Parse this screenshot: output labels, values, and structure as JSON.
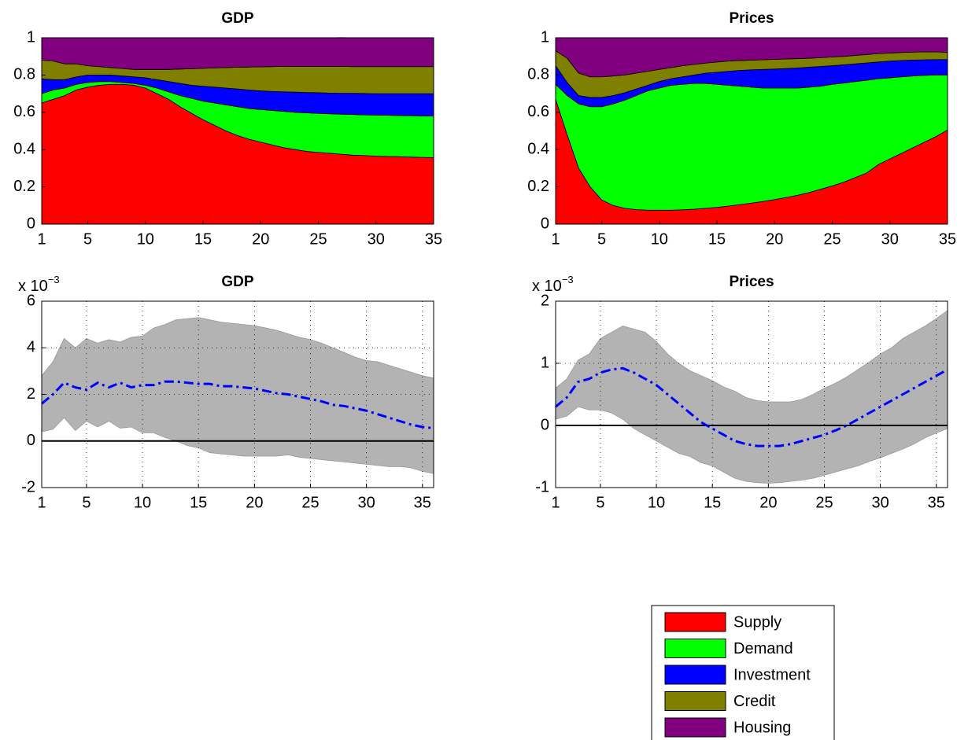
{
  "chart_data": [
    {
      "type": "stacked_area",
      "title": "GDP",
      "x": [
        1,
        2,
        3,
        4,
        5,
        6,
        7,
        8,
        9,
        10,
        11,
        12,
        13,
        14,
        15,
        16,
        17,
        18,
        19,
        20,
        21,
        22,
        23,
        24,
        25,
        26,
        27,
        28,
        29,
        30,
        31,
        32,
        33,
        34,
        35
      ],
      "series": [
        {
          "name": "Supply",
          "color": "#ff0000",
          "values": [
            0.65,
            0.67,
            0.69,
            0.72,
            0.735,
            0.745,
            0.75,
            0.75,
            0.745,
            0.73,
            0.7,
            0.67,
            0.63,
            0.595,
            0.56,
            0.53,
            0.5,
            0.475,
            0.455,
            0.44,
            0.425,
            0.41,
            0.4,
            0.39,
            0.385,
            0.38,
            0.375,
            0.37,
            0.368,
            0.365,
            0.363,
            0.362,
            0.36,
            0.358,
            0.357
          ]
        },
        {
          "name": "Demand",
          "color": "#00ff00",
          "values": [
            0.05,
            0.05,
            0.04,
            0.03,
            0.025,
            0.02,
            0.015,
            0.01,
            0.01,
            0.015,
            0.03,
            0.04,
            0.06,
            0.08,
            0.1,
            0.12,
            0.14,
            0.155,
            0.165,
            0.175,
            0.185,
            0.195,
            0.2,
            0.207,
            0.209,
            0.212,
            0.215,
            0.218,
            0.218,
            0.22,
            0.221,
            0.221,
            0.222,
            0.223,
            0.223
          ]
        },
        {
          "name": "Investment",
          "color": "#0000ff",
          "values": [
            0.08,
            0.055,
            0.045,
            0.04,
            0.04,
            0.035,
            0.035,
            0.035,
            0.035,
            0.04,
            0.045,
            0.055,
            0.065,
            0.07,
            0.08,
            0.085,
            0.09,
            0.095,
            0.1,
            0.1,
            0.102,
            0.105,
            0.108,
            0.109,
            0.111,
            0.111,
            0.112,
            0.114,
            0.115,
            0.115,
            0.116,
            0.117,
            0.118,
            0.119,
            0.12
          ]
        },
        {
          "name": "Credit",
          "color": "#808000",
          "values": [
            0.1,
            0.1,
            0.085,
            0.07,
            0.05,
            0.045,
            0.04,
            0.04,
            0.04,
            0.045,
            0.055,
            0.065,
            0.077,
            0.089,
            0.096,
            0.103,
            0.11,
            0.117,
            0.123,
            0.129,
            0.133,
            0.136,
            0.138,
            0.14,
            0.141,
            0.143,
            0.144,
            0.143,
            0.144,
            0.145,
            0.145,
            0.145,
            0.145,
            0.145,
            0.145
          ]
        },
        {
          "name": "Housing",
          "color": "#800080",
          "values": [
            0.12,
            0.125,
            0.14,
            0.14,
            0.15,
            0.155,
            0.16,
            0.165,
            0.17,
            0.17,
            0.17,
            0.17,
            0.168,
            0.166,
            0.164,
            0.162,
            0.16,
            0.158,
            0.157,
            0.156,
            0.155,
            0.154,
            0.154,
            0.154,
            0.154,
            0.154,
            0.155,
            0.155,
            0.155,
            0.155,
            0.155,
            0.155,
            0.155,
            0.155,
            0.155
          ]
        }
      ],
      "xlim": [
        1,
        35
      ],
      "xticks": [
        1,
        5,
        10,
        15,
        20,
        25,
        30,
        35
      ],
      "ylim": [
        0,
        1
      ],
      "yticks": [
        0,
        0.2,
        0.4,
        0.6,
        0.8,
        1
      ],
      "grid": false,
      "legend": true
    },
    {
      "type": "stacked_area",
      "title": "Prices",
      "x": [
        1,
        2,
        3,
        4,
        5,
        6,
        7,
        8,
        9,
        10,
        11,
        12,
        13,
        14,
        15,
        16,
        17,
        18,
        19,
        20,
        21,
        22,
        23,
        24,
        25,
        26,
        27,
        28,
        29,
        30,
        31,
        32,
        33,
        34,
        35
      ],
      "series": [
        {
          "color": "#ff0000",
          "values": [
            0.67,
            0.48,
            0.3,
            0.2,
            0.13,
            0.1,
            0.085,
            0.078,
            0.075,
            0.075,
            0.075,
            0.077,
            0.08,
            0.085,
            0.09,
            0.097,
            0.105,
            0.113,
            0.122,
            0.132,
            0.143,
            0.155,
            0.17,
            0.187,
            0.205,
            0.225,
            0.25,
            0.275,
            0.32,
            0.35,
            0.38,
            0.41,
            0.44,
            0.47,
            0.505
          ]
        },
        {
          "color": "#00ff00",
          "values": [
            0.08,
            0.21,
            0.345,
            0.43,
            0.5,
            0.545,
            0.58,
            0.612,
            0.64,
            0.655,
            0.67,
            0.673,
            0.675,
            0.67,
            0.66,
            0.648,
            0.635,
            0.622,
            0.608,
            0.598,
            0.587,
            0.575,
            0.565,
            0.553,
            0.545,
            0.532,
            0.515,
            0.497,
            0.46,
            0.435,
            0.41,
            0.385,
            0.358,
            0.33,
            0.295
          ]
        },
        {
          "color": "#0000ff",
          "values": [
            0.1,
            0.07,
            0.045,
            0.05,
            0.05,
            0.045,
            0.04,
            0.035,
            0.03,
            0.035,
            0.035,
            0.04,
            0.045,
            0.055,
            0.065,
            0.075,
            0.085,
            0.093,
            0.1,
            0.102,
            0.105,
            0.108,
            0.107,
            0.106,
            0.1,
            0.098,
            0.095,
            0.093,
            0.09,
            0.09,
            0.088,
            0.085,
            0.084,
            0.083,
            0.083
          ]
        },
        {
          "color": "#808000",
          "values": [
            0.08,
            0.13,
            0.12,
            0.11,
            0.11,
            0.105,
            0.095,
            0.085,
            0.075,
            0.065,
            0.06,
            0.06,
            0.057,
            0.054,
            0.055,
            0.055,
            0.053,
            0.052,
            0.052,
            0.052,
            0.051,
            0.05,
            0.048,
            0.047,
            0.047,
            0.045,
            0.045,
            0.045,
            0.045,
            0.043,
            0.043,
            0.043,
            0.042,
            0.041,
            0.039
          ]
        },
        {
          "color": "#800080",
          "values": [
            0.07,
            0.11,
            0.19,
            0.21,
            0.21,
            0.205,
            0.2,
            0.19,
            0.18,
            0.17,
            0.16,
            0.15,
            0.143,
            0.136,
            0.13,
            0.125,
            0.122,
            0.12,
            0.118,
            0.116,
            0.114,
            0.112,
            0.11,
            0.107,
            0.103,
            0.1,
            0.095,
            0.09,
            0.085,
            0.082,
            0.079,
            0.077,
            0.076,
            0.076,
            0.078
          ]
        }
      ],
      "xlim": [
        1,
        35
      ],
      "xticks": [
        1,
        5,
        10,
        15,
        20,
        25,
        30,
        35
      ],
      "ylim": [
        0,
        1
      ],
      "yticks": [
        0,
        0.2,
        0.4,
        0.6,
        0.8,
        1
      ],
      "grid": false
    },
    {
      "type": "band_line",
      "title": "GDP",
      "y_multiplier": {
        "base": "x 10",
        "exponent": "−3"
      },
      "x": [
        1,
        2,
        3,
        4,
        5,
        6,
        7,
        8,
        9,
        10,
        11,
        12,
        13,
        14,
        15,
        16,
        17,
        18,
        19,
        20,
        21,
        22,
        23,
        24,
        25,
        26,
        27,
        28,
        29,
        30,
        31,
        32,
        33,
        34,
        35,
        36
      ],
      "band": {
        "color": "#b3b3b3",
        "lower": [
          0.4,
          0.5,
          1.0,
          0.45,
          0.85,
          0.6,
          0.85,
          0.55,
          0.6,
          0.35,
          0.35,
          0.15,
          0.0,
          -0.2,
          -0.3,
          -0.5,
          -0.55,
          -0.6,
          -0.65,
          -0.65,
          -0.65,
          -0.65,
          -0.6,
          -0.7,
          -0.75,
          -0.8,
          -0.85,
          -0.9,
          -0.95,
          -1.0,
          -1.05,
          -1.1,
          -1.1,
          -1.15,
          -1.3,
          -1.4
        ],
        "upper": [
          2.8,
          3.4,
          4.4,
          4.0,
          4.4,
          4.2,
          4.35,
          4.25,
          4.45,
          4.5,
          4.85,
          5.0,
          5.2,
          5.25,
          5.3,
          5.2,
          5.1,
          5.05,
          5.0,
          4.95,
          4.85,
          4.75,
          4.6,
          4.45,
          4.35,
          4.2,
          4.0,
          3.8,
          3.6,
          3.45,
          3.4,
          3.25,
          3.1,
          2.95,
          2.8,
          2.7
        ]
      },
      "line": {
        "color": "#0000ff",
        "values": [
          1.6,
          2.0,
          2.5,
          2.3,
          2.2,
          2.5,
          2.3,
          2.5,
          2.3,
          2.4,
          2.4,
          2.55,
          2.55,
          2.5,
          2.45,
          2.45,
          2.35,
          2.35,
          2.3,
          2.25,
          2.15,
          2.05,
          2.0,
          1.9,
          1.8,
          1.7,
          1.55,
          1.5,
          1.4,
          1.3,
          1.15,
          1.0,
          0.85,
          0.7,
          0.6,
          0.55
        ]
      },
      "reference_line": 0,
      "xlim": [
        1,
        36
      ],
      "xticks": [
        1,
        5,
        10,
        15,
        20,
        25,
        30,
        35
      ],
      "ylim": [
        -2,
        6
      ],
      "yticks": [
        -2,
        0,
        2,
        4,
        6
      ],
      "grid": true
    },
    {
      "type": "band_line",
      "title": "Prices",
      "y_multiplier": {
        "base": "x 10",
        "exponent": "−3"
      },
      "x": [
        1,
        2,
        3,
        4,
        5,
        6,
        7,
        8,
        9,
        10,
        11,
        12,
        13,
        14,
        15,
        16,
        17,
        18,
        19,
        20,
        21,
        22,
        23,
        24,
        25,
        26,
        27,
        28,
        29,
        30,
        31,
        32,
        33,
        34,
        35,
        36
      ],
      "band": {
        "color": "#b3b3b3",
        "lower": [
          0.1,
          0.15,
          0.3,
          0.25,
          0.25,
          0.2,
          0.1,
          -0.05,
          -0.15,
          -0.25,
          -0.35,
          -0.45,
          -0.5,
          -0.6,
          -0.65,
          -0.75,
          -0.85,
          -0.9,
          -0.92,
          -0.93,
          -0.92,
          -0.9,
          -0.88,
          -0.85,
          -0.8,
          -0.75,
          -0.7,
          -0.65,
          -0.58,
          -0.52,
          -0.45,
          -0.38,
          -0.3,
          -0.2,
          -0.12,
          -0.05
        ],
        "upper": [
          0.6,
          0.75,
          1.05,
          1.15,
          1.4,
          1.5,
          1.6,
          1.55,
          1.5,
          1.35,
          1.15,
          1.0,
          0.88,
          0.8,
          0.72,
          0.62,
          0.55,
          0.45,
          0.4,
          0.38,
          0.38,
          0.38,
          0.42,
          0.5,
          0.6,
          0.68,
          0.78,
          0.9,
          1.02,
          1.15,
          1.25,
          1.4,
          1.5,
          1.6,
          1.72,
          1.85
        ]
      },
      "line": {
        "color": "#0000ff",
        "values": [
          0.3,
          0.45,
          0.7,
          0.75,
          0.85,
          0.9,
          0.92,
          0.85,
          0.75,
          0.65,
          0.5,
          0.35,
          0.2,
          0.05,
          -0.05,
          -0.15,
          -0.25,
          -0.3,
          -0.33,
          -0.33,
          -0.33,
          -0.3,
          -0.25,
          -0.2,
          -0.15,
          -0.08,
          0.0,
          0.1,
          0.2,
          0.3,
          0.4,
          0.5,
          0.6,
          0.7,
          0.8,
          0.9
        ]
      },
      "reference_line": 0,
      "xlim": [
        1,
        36
      ],
      "xticks": [
        1,
        5,
        10,
        15,
        20,
        25,
        30,
        35
      ],
      "ylim": [
        -1,
        2
      ],
      "yticks": [
        -1,
        0,
        1,
        2
      ],
      "grid": true
    }
  ]
}
